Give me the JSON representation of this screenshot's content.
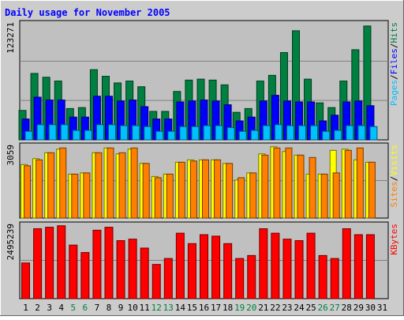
{
  "chart_data": {
    "type": "bar",
    "title": "Daily usage for November 2005",
    "days": [
      "1",
      "2",
      "3",
      "4",
      "5",
      "6",
      "7",
      "8",
      "9",
      "10",
      "11",
      "12",
      "13",
      "14",
      "15",
      "16",
      "17",
      "18",
      "19",
      "20",
      "21",
      "22",
      "23",
      "24",
      "25",
      "26",
      "27",
      "28",
      "29",
      "30",
      "31"
    ],
    "weekend_days": [
      "5",
      "6",
      "12",
      "13",
      "19",
      "20",
      "26",
      "27"
    ],
    "colors": {
      "title": "#0000ff",
      "background": "#c0c0c0",
      "frame": "#cccccc",
      "hits": "#008040",
      "files": "#0000ff",
      "pages": "#00c0ff",
      "visits": "#ffff00",
      "sites": "#ff8000",
      "kbytes": "#ff0000",
      "weekday_label": "#000000",
      "weekend_label": "#008040",
      "grid": "#808080"
    },
    "panels": [
      {
        "id": "requests",
        "max_label": "123271",
        "ymax": 123271,
        "ylabel_parts": [
          {
            "text": "Pages",
            "color": "#00c0ff"
          },
          {
            "text": "/",
            "color": "#000000"
          },
          {
            "text": "Files",
            "color": "#0000ff"
          },
          {
            "text": "/",
            "color": "#000000"
          },
          {
            "text": "Hits",
            "color": "#008040"
          }
        ],
        "series": [
          {
            "name": "Hits",
            "color": "#008040",
            "values": [
              31000,
              70000,
              66000,
              62000,
              33000,
              34000,
              74000,
              67000,
              60000,
              62000,
              56000,
              30000,
              30000,
              51000,
              63000,
              64000,
              63000,
              58000,
              29000,
              33000,
              62000,
              68000,
              92000,
              115000,
              64000,
              39000,
              34000,
              62000,
              95000,
              120000,
              0
            ]
          },
          {
            "name": "Files",
            "color": "#0000ff",
            "values": [
              22000,
              45000,
              42000,
              42000,
              24000,
              24000,
              46000,
              46000,
              41000,
              42000,
              35000,
              22000,
              22000,
              40000,
              41000,
              42000,
              41000,
              37000,
              20000,
              24000,
              41000,
              47000,
              41000,
              40000,
              40000,
              20000,
              26000,
              40000,
              41000,
              36000,
              0
            ]
          },
          {
            "name": "Pages",
            "color": "#00c0ff",
            "values": [
              9000,
              16000,
              16000,
              16000,
              10000,
              10000,
              16000,
              16000,
              15000,
              15000,
              14000,
              9000,
              9000,
              14000,
              14000,
              15000,
              15000,
              13000,
              9000,
              10000,
              15000,
              16000,
              15000,
              15000,
              15000,
              9000,
              10000,
              15000,
              15000,
              14000,
              0
            ]
          }
        ]
      },
      {
        "id": "visitors",
        "max_label": "3059",
        "ymax": 3059,
        "ylabel_parts": [
          {
            "text": "Sites",
            "color": "#ff8000"
          },
          {
            "text": "/",
            "color": "#000000"
          },
          {
            "text": "Visits",
            "color": "#ffff00"
          }
        ],
        "series": [
          {
            "name": "Visits",
            "color": "#ffff00",
            "values": [
              2250,
              2500,
              2750,
              2900,
              1850,
              1900,
              2750,
              2950,
              2700,
              2900,
              2300,
              1750,
              1850,
              2350,
              2450,
              2450,
              2450,
              2300,
              1600,
              1900,
              2700,
              3000,
              2800,
              2650,
              1850,
              1850,
              2850,
              2900,
              2450,
              2350,
              0
            ]
          },
          {
            "name": "Sites",
            "color": "#ff8000",
            "values": [
              2200,
              2450,
              2750,
              2950,
              1850,
              1900,
              2750,
              2950,
              2750,
              2950,
              2300,
              1700,
              1850,
              2350,
              2400,
              2450,
              2450,
              2300,
              1700,
              1900,
              2650,
              2950,
              2950,
              2650,
              2550,
              1850,
              1900,
              2850,
              2950,
              2350,
              0
            ]
          }
        ]
      },
      {
        "id": "kbytes",
        "max_label": "2495239",
        "ymax": 2495239,
        "ylabel_parts": [
          {
            "text": "KBytes",
            "color": "#ff0000"
          }
        ],
        "series": [
          {
            "name": "KBytes",
            "color": "#ff0000",
            "values": [
              1200000,
              2350000,
              2400000,
              2450000,
              1800000,
              1550000,
              2300000,
              2400000,
              1950000,
              2000000,
              1700000,
              1150000,
              1350000,
              2200000,
              1850000,
              2150000,
              2100000,
              1850000,
              1350000,
              1450000,
              2350000,
              2200000,
              2000000,
              1950000,
              2200000,
              1450000,
              1350000,
              2350000,
              2150000,
              2150000,
              0
            ]
          }
        ]
      }
    ]
  }
}
